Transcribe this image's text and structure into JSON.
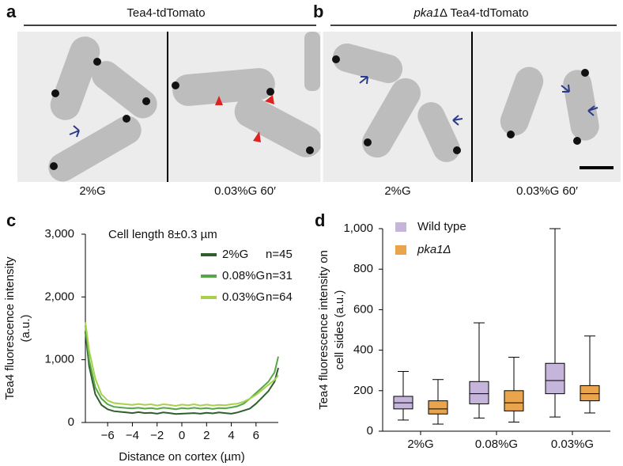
{
  "panels": {
    "a": {
      "label": "a",
      "title": "Tea4-tdTomato",
      "conditions": [
        "2%G",
        "0.03%G 60′"
      ]
    },
    "b": {
      "label": "b",
      "title_italic": "pka1",
      "title_rest": "Δ Tea4-tdTomato",
      "conditions": [
        "2%G",
        "0.03%G 60′"
      ]
    }
  },
  "chart_data": [
    {
      "type": "line",
      "panel_label": "c",
      "annotation": "Cell length 8±0.3 µm",
      "xlabel": "Distance on cortex (µm)",
      "ylabel": [
        "Tea4 fluorescence intensity",
        "(a.u.)"
      ],
      "x": [
        -7.8,
        -7.5,
        -7,
        -6.5,
        -6,
        -5.5,
        -5,
        -4.5,
        -4,
        -3.5,
        -3,
        -2.5,
        -2,
        -1.5,
        -1,
        -0.5,
        0,
        0.5,
        1,
        1.5,
        2,
        2.5,
        3,
        3.5,
        4,
        4.5,
        5,
        5.5,
        6,
        6.5,
        7,
        7.5,
        7.8
      ],
      "xlim": [
        -7.8,
        7.8
      ],
      "xticks": [
        {
          "value": -6,
          "label": "−6"
        },
        {
          "value": -4,
          "label": "−4"
        },
        {
          "value": -2,
          "label": "−2"
        },
        0,
        2,
        4,
        6
      ],
      "ylim": [
        0,
        3000
      ],
      "yticks": [
        0,
        {
          "value": 1000,
          "label": "1,000"
        },
        {
          "value": 2000,
          "label": "2,000"
        },
        {
          "value": 3000,
          "label": "3,000"
        }
      ],
      "series": [
        {
          "name": "2%G",
          "note": "n=45",
          "color": "#2f5f2c",
          "values": [
            1450,
            900,
            450,
            280,
            210,
            180,
            170,
            160,
            150,
            165,
            150,
            155,
            140,
            160,
            150,
            135,
            140,
            145,
            150,
            140,
            155,
            145,
            160,
            150,
            140,
            160,
            190,
            220,
            300,
            400,
            500,
            650,
            870
          ]
        },
        {
          "name": "0.08%G",
          "note": "n=31",
          "color": "#55a845",
          "values": [
            1550,
            1000,
            560,
            380,
            290,
            250,
            240,
            230,
            225,
            235,
            220,
            230,
            215,
            235,
            225,
            210,
            230,
            220,
            235,
            220,
            230,
            215,
            230,
            225,
            240,
            260,
            300,
            380,
            470,
            560,
            650,
            800,
            1050
          ]
        },
        {
          "name": "0.03%G",
          "note": "n=64",
          "color": "#a6d148",
          "values": [
            1600,
            1150,
            700,
            450,
            350,
            310,
            300,
            290,
            280,
            295,
            280,
            290,
            270,
            290,
            280,
            265,
            285,
            275,
            290,
            270,
            285,
            270,
            280,
            275,
            290,
            300,
            330,
            380,
            440,
            520,
            600,
            680,
            750
          ]
        }
      ]
    },
    {
      "type": "box",
      "panel_label": "d",
      "ylabel": [
        "Tea4 fluorescence intensity on",
        "cell sides (a.u.)"
      ],
      "categories": [
        "2%G",
        "0.08%G",
        "0.03%G"
      ],
      "ylim": [
        0,
        1000
      ],
      "yticks": [
        0,
        200,
        400,
        600,
        800,
        {
          "value": 1000,
          "label": "1,000"
        }
      ],
      "series": [
        {
          "name": "Wild type",
          "color": "#c5b5db",
          "boxes": [
            {
              "whislo": 55,
              "q1": 110,
              "med": 140,
              "q3": 172,
              "whishi": 295
            },
            {
              "whislo": 65,
              "q1": 135,
              "med": 185,
              "q3": 245,
              "whishi": 535
            },
            {
              "whislo": 70,
              "q1": 185,
              "med": 250,
              "q3": 335,
              "whishi": 1000
            }
          ]
        },
        {
          "name": "pka1Δ",
          "color": "#eaa54c",
          "boxes": [
            {
              "whislo": 35,
              "q1": 85,
              "med": 110,
              "q3": 150,
              "whishi": 255
            },
            {
              "whislo": 45,
              "q1": 100,
              "med": 140,
              "q3": 200,
              "whishi": 365
            },
            {
              "whislo": 90,
              "q1": 150,
              "med": 185,
              "q3": 225,
              "whishi": 470
            }
          ]
        }
      ]
    }
  ]
}
